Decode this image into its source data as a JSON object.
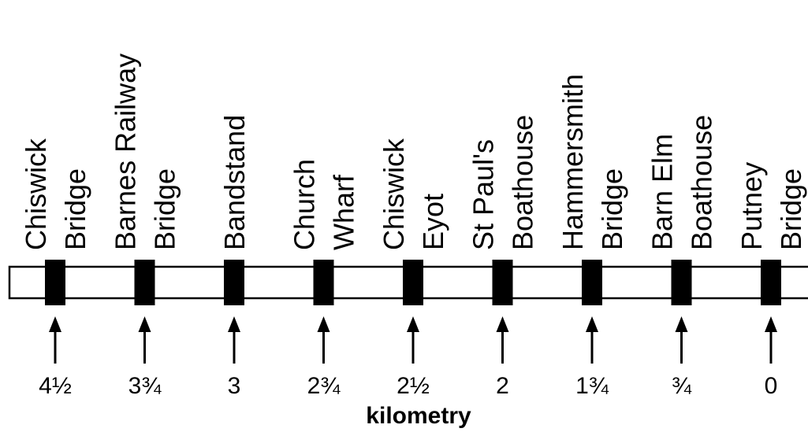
{
  "title": "",
  "axis_label": "kilometry",
  "stations": [
    {
      "name_lines": [
        "Chiswick",
        "Bridge"
      ],
      "distance": "4½"
    },
    {
      "name_lines": [
        "Barnes Railway",
        "Bridge"
      ],
      "distance": "3¾"
    },
    {
      "name_lines": [
        "Bandstand"
      ],
      "distance": "3"
    },
    {
      "name_lines": [
        "Church",
        "Wharf"
      ],
      "distance": "2¾"
    },
    {
      "name_lines": [
        "Chiswick",
        "Eyot"
      ],
      "distance": "2½"
    },
    {
      "name_lines": [
        "St Paul's",
        "Boathouse"
      ],
      "distance": "2"
    },
    {
      "name_lines": [
        "Hammersmith",
        "Bridge"
      ],
      "distance": "1¾"
    },
    {
      "name_lines": [
        "Barn Elm",
        "Boathouse"
      ],
      "distance": "¾"
    },
    {
      "name_lines": [
        "Putney",
        "Bridge"
      ],
      "distance": "0"
    }
  ]
}
